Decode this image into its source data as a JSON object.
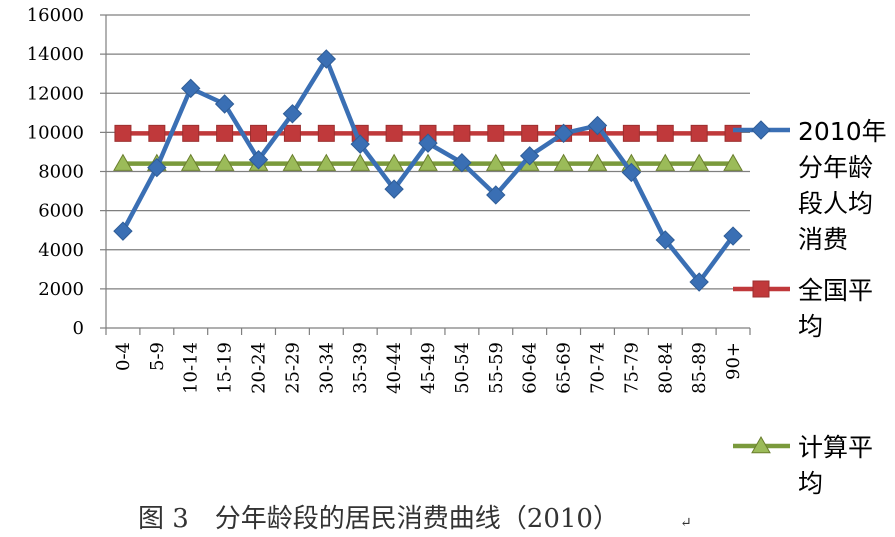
{
  "chart_data": {
    "type": "line",
    "caption": "图 3　分年龄段的居民消费曲线（2010）",
    "caption_mark": "↵",
    "categories": [
      "0-4",
      "5-9",
      "10-14",
      "15-19",
      "20-24",
      "25-29",
      "30-34",
      "35-39",
      "40-44",
      "45-49",
      "50-54",
      "55-59",
      "60-64",
      "65-69",
      "70-74",
      "75-79",
      "80-84",
      "85-89",
      "90+"
    ],
    "ylim": [
      0,
      16000
    ],
    "yticks": [
      0,
      2000,
      4000,
      6000,
      8000,
      10000,
      12000,
      14000,
      16000
    ],
    "grid": "horizontal",
    "legend_position": "right",
    "series": [
      {
        "name": "2010年分年龄段人均消费",
        "legend_lines": [
          "2010年",
          "分年龄",
          "段人均",
          "消费"
        ],
        "color": "#3a6fb4",
        "marker": "diamond",
        "values": [
          4950,
          8200,
          12250,
          11450,
          8600,
          10950,
          13750,
          9400,
          7100,
          9450,
          8450,
          6800,
          8800,
          9950,
          10350,
          7950,
          4500,
          2350,
          4700
        ]
      },
      {
        "name": "全国平均",
        "legend_lines": [
          "全国平",
          "均"
        ],
        "color": "#c0393b",
        "marker": "square",
        "values": [
          9950,
          9950,
          9950,
          9950,
          9950,
          9950,
          9950,
          9950,
          9950,
          9950,
          9950,
          9950,
          9950,
          9950,
          9950,
          9950,
          9950,
          9950,
          9950
        ]
      },
      {
        "name": "计算平均",
        "legend_lines": [
          "计算平",
          "均"
        ],
        "color": "#7a9a3c",
        "marker": "triangle",
        "values": [
          8400,
          8400,
          8400,
          8400,
          8400,
          8400,
          8400,
          8400,
          8400,
          8400,
          8400,
          8400,
          8400,
          8400,
          8400,
          8400,
          8400,
          8400,
          8400
        ]
      }
    ]
  }
}
